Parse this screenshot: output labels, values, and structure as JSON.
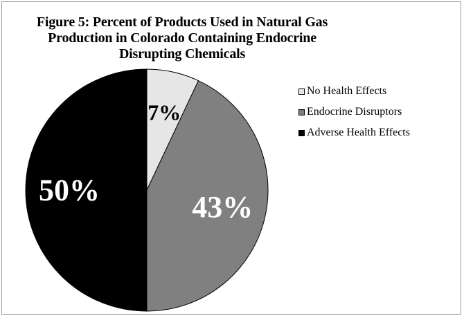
{
  "chart_data": {
    "type": "pie",
    "title": "Figure 5: Percent of Products Used in Natural Gas Production in Colorado Containing Endocrine Disrupting Chemicals",
    "legend_position": "right",
    "slices": [
      {
        "name": "No Health Effects",
        "value": 7,
        "label": "7%",
        "color": "#e6e6e6",
        "label_color": "#000000"
      },
      {
        "name": "Endocrine Disruptors",
        "value": 43,
        "label": "43%",
        "color": "#808080",
        "label_color": "#ffffff"
      },
      {
        "name": "Adverse Health Effects",
        "value": 50,
        "label": "50%",
        "color": "#000000",
        "label_color": "#ffffff"
      }
    ]
  }
}
